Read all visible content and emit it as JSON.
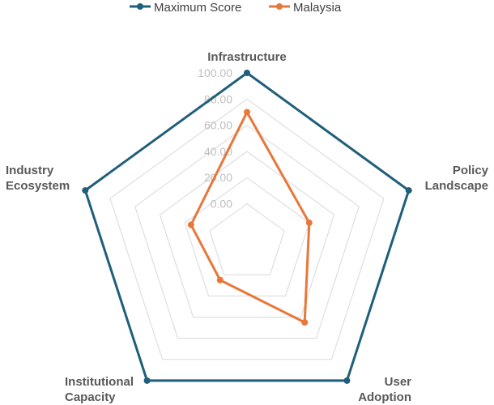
{
  "chart_data": {
    "type": "radar",
    "axes": [
      [
        "Infrastructure"
      ],
      [
        "Policy",
        "Landscape"
      ],
      [
        "User",
        "Adoption"
      ],
      [
        "Institutional",
        "Capacity"
      ],
      [
        "Industry",
        "Ecosystem"
      ]
    ],
    "ticks": [
      "0.00",
      "20.00",
      "40.00",
      "60.00",
      "80.00",
      "100.00"
    ],
    "range": [
      -30,
      100
    ],
    "grid": true,
    "legend_position": "top",
    "series": [
      {
        "name": "Maximum Score",
        "color": "#1f5f7a",
        "values": [
          100,
          100,
          100,
          100,
          100
        ]
      },
      {
        "name": "Malaysia",
        "color": "#e8773a",
        "values": [
          70,
          20,
          45,
          5,
          15
        ]
      }
    ]
  }
}
